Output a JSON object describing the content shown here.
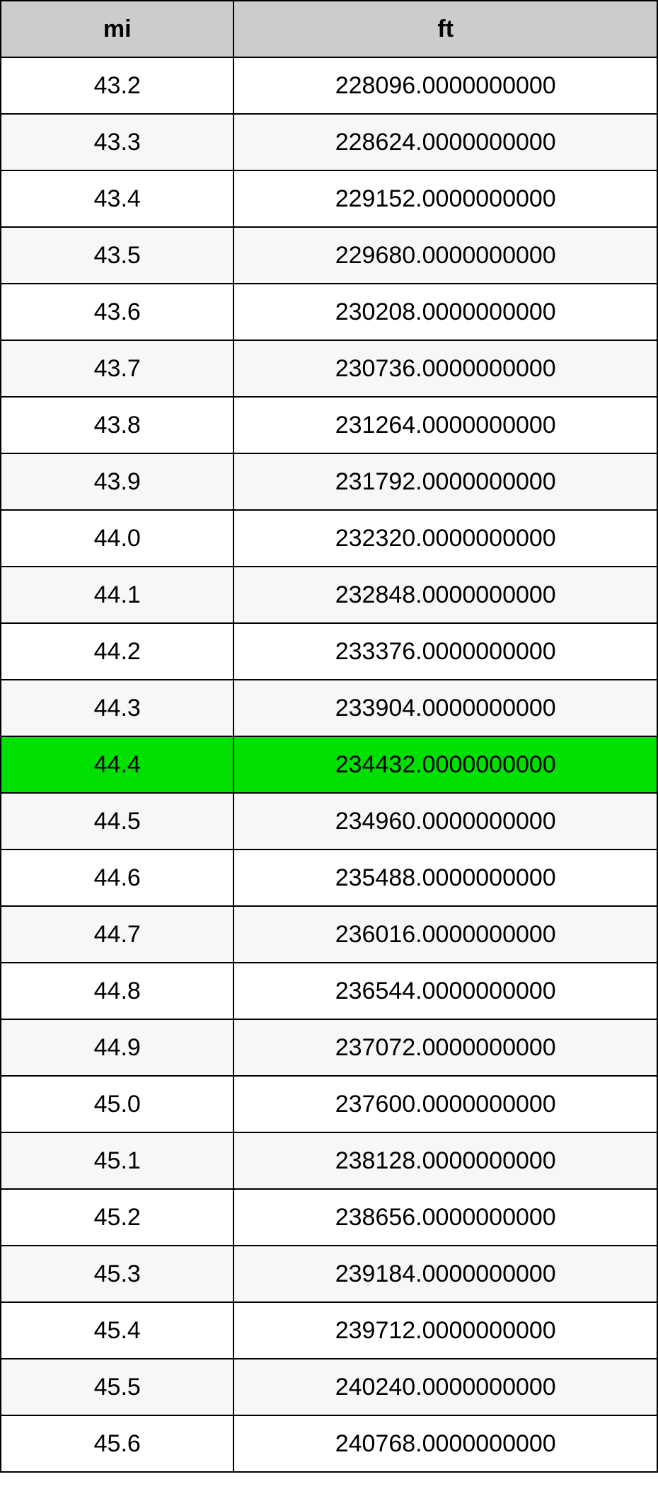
{
  "table": {
    "type": "table",
    "columns": [
      "mi",
      "ft"
    ],
    "column_widths_pct": [
      35.5,
      64.5
    ],
    "header_bg": "#cccccc",
    "row_bg_even": "#ffffff",
    "row_bg_odd": "#f7f7f7",
    "highlight_bg": "#00e000",
    "border_color": "#000000",
    "text_color": "#000000",
    "header_fontsize": 34,
    "body_fontsize": 34,
    "highlight_row_index": 12,
    "rows": [
      [
        "43.2",
        "228096.0000000000"
      ],
      [
        "43.3",
        "228624.0000000000"
      ],
      [
        "43.4",
        "229152.0000000000"
      ],
      [
        "43.5",
        "229680.0000000000"
      ],
      [
        "43.6",
        "230208.0000000000"
      ],
      [
        "43.7",
        "230736.0000000000"
      ],
      [
        "43.8",
        "231264.0000000000"
      ],
      [
        "43.9",
        "231792.0000000000"
      ],
      [
        "44.0",
        "232320.0000000000"
      ],
      [
        "44.1",
        "232848.0000000000"
      ],
      [
        "44.2",
        "233376.0000000000"
      ],
      [
        "44.3",
        "233904.0000000000"
      ],
      [
        "44.4",
        "234432.0000000000"
      ],
      [
        "44.5",
        "234960.0000000000"
      ],
      [
        "44.6",
        "235488.0000000000"
      ],
      [
        "44.7",
        "236016.0000000000"
      ],
      [
        "44.8",
        "236544.0000000000"
      ],
      [
        "44.9",
        "237072.0000000000"
      ],
      [
        "45.0",
        "237600.0000000000"
      ],
      [
        "45.1",
        "238128.0000000000"
      ],
      [
        "45.2",
        "238656.0000000000"
      ],
      [
        "45.3",
        "239184.0000000000"
      ],
      [
        "45.4",
        "239712.0000000000"
      ],
      [
        "45.5",
        "240240.0000000000"
      ],
      [
        "45.6",
        "240768.0000000000"
      ]
    ]
  }
}
